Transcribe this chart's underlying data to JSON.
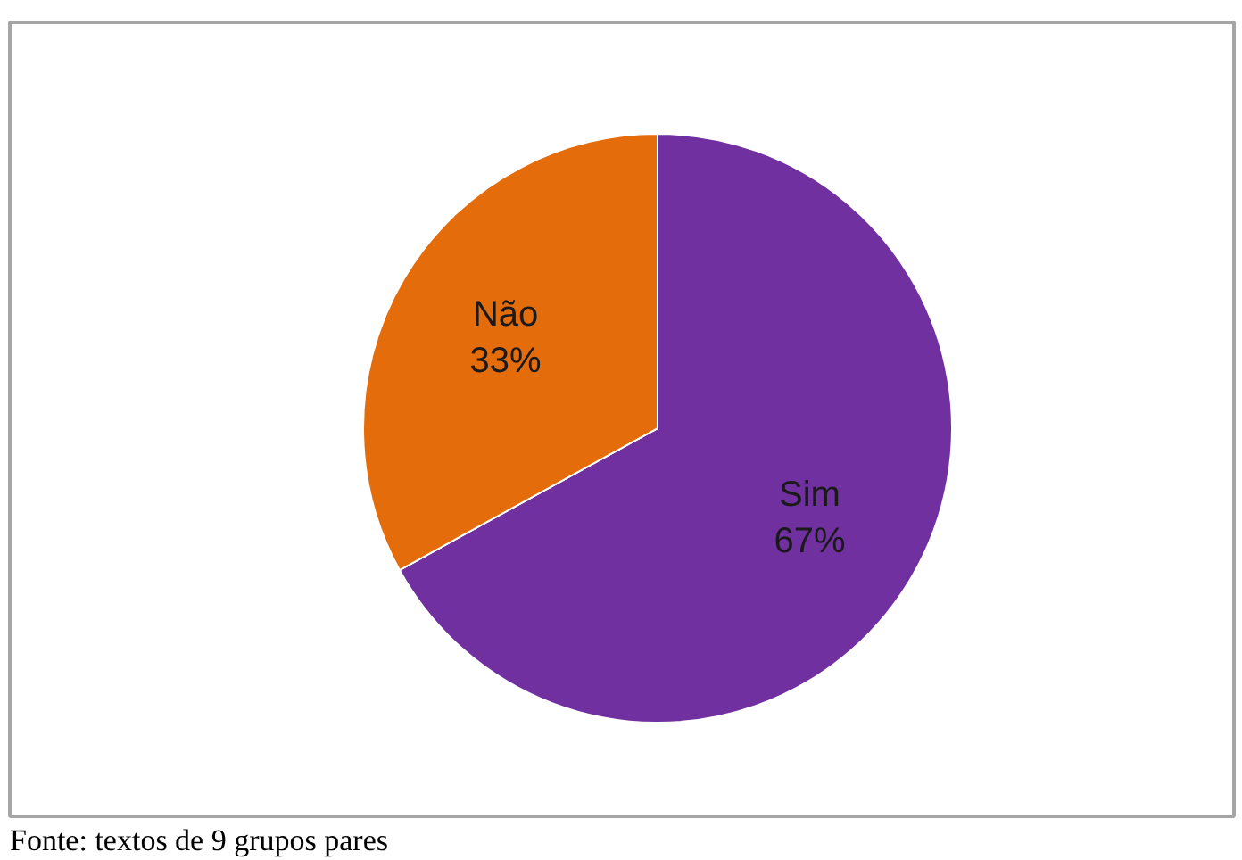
{
  "chart_data": {
    "type": "pie",
    "categories": [
      "Sim",
      "Não"
    ],
    "values": [
      67,
      33
    ],
    "colors": [
      "#7030a0",
      "#e46c0a"
    ],
    "value_labels": [
      "67%",
      "33%"
    ],
    "annotations": [
      "Fonte: textos de 9 grupos pares"
    ]
  }
}
